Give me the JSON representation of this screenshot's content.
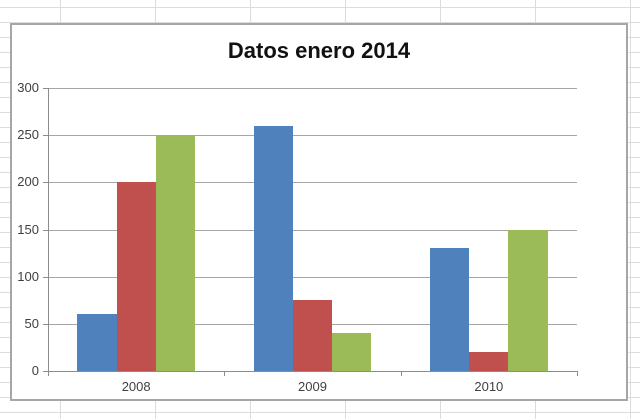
{
  "chart_data": {
    "type": "bar",
    "title": "Datos enero 2014",
    "categories": [
      "2008",
      "2009",
      "2010"
    ],
    "series": [
      {
        "color": "#4F81BD",
        "values": [
          60,
          260,
          130
        ]
      },
      {
        "color": "#C0504D",
        "values": [
          200,
          75,
          20
        ]
      },
      {
        "color": "#9BBB59",
        "values": [
          250,
          40,
          150
        ]
      }
    ],
    "xlabel": "",
    "ylabel": "",
    "ylim": [
      0,
      300
    ],
    "y_ticks": [
      0,
      50,
      100,
      150,
      200,
      250,
      300
    ],
    "grid": true,
    "legend": "none"
  },
  "colors": {
    "excel_grid_line": "#dcdcdc",
    "chart_border": "#a6a6a6",
    "grid_line": "#a6a6a6",
    "axis_line": "#8c8c8c",
    "tick_label": "#404040",
    "title": "#111111"
  }
}
